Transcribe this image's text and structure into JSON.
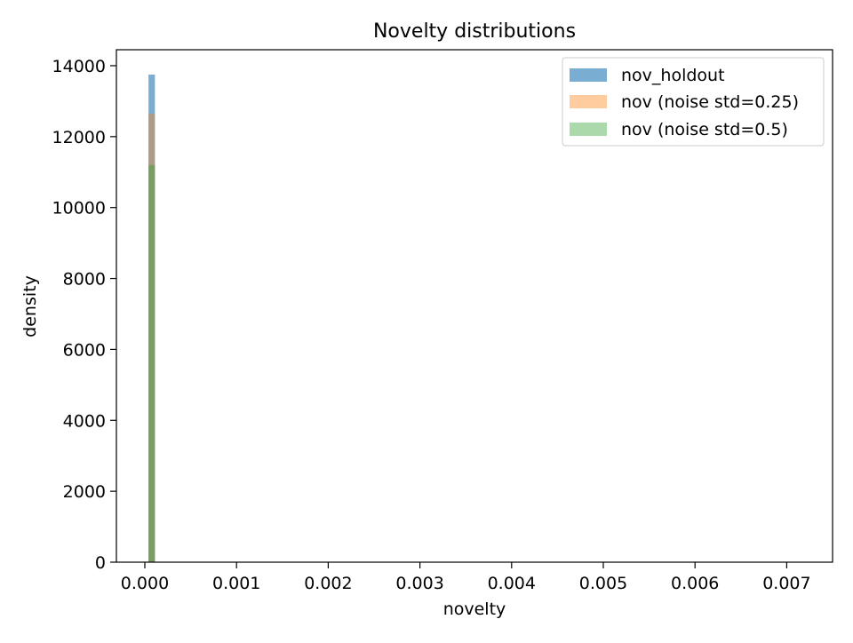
{
  "chart_data": {
    "type": "histogram",
    "title": "Novelty distributions",
    "xlabel": "novelty",
    "ylabel": "density",
    "xlim": [
      -0.00031,
      0.0075
    ],
    "ylim": [
      0,
      14450
    ],
    "xticks": [
      0.0,
      0.001,
      0.002,
      0.003,
      0.004,
      0.005,
      0.006,
      0.007
    ],
    "xtick_labels": [
      "0.000",
      "0.001",
      "0.002",
      "0.003",
      "0.004",
      "0.005",
      "0.006",
      "0.007"
    ],
    "yticks": [
      0,
      2000,
      4000,
      6000,
      8000,
      10000,
      12000,
      14000
    ],
    "ytick_labels": [
      "0",
      "2000",
      "4000",
      "6000",
      "8000",
      "10000",
      "12000",
      "14000"
    ],
    "legend_position": "top-right",
    "grid": false,
    "series": [
      {
        "name": "nov_holdout",
        "color": "#1f77b4",
        "opacity": 0.6,
        "bins": [
          {
            "x0": 4e-05,
            "x1": 0.00011,
            "density": 13750
          },
          {
            "x0": 0.00011,
            "x1": 0.0072,
            "density": 0
          }
        ]
      },
      {
        "name": "nov (noise std=0.25)",
        "color": "#ff7f0e",
        "opacity": 0.4,
        "bins": [
          {
            "x0": 4e-05,
            "x1": 0.00011,
            "density": 12650
          },
          {
            "x0": 0.00011,
            "x1": 0.0072,
            "density": 0
          }
        ]
      },
      {
        "name": "nov (noise std=0.5)",
        "color": "#2ca02c",
        "opacity": 0.4,
        "bins": [
          {
            "x0": 4e-05,
            "x1": 0.00011,
            "density": 11200
          },
          {
            "x0": 0.00011,
            "x1": 0.0072,
            "density": 0
          }
        ]
      }
    ]
  }
}
